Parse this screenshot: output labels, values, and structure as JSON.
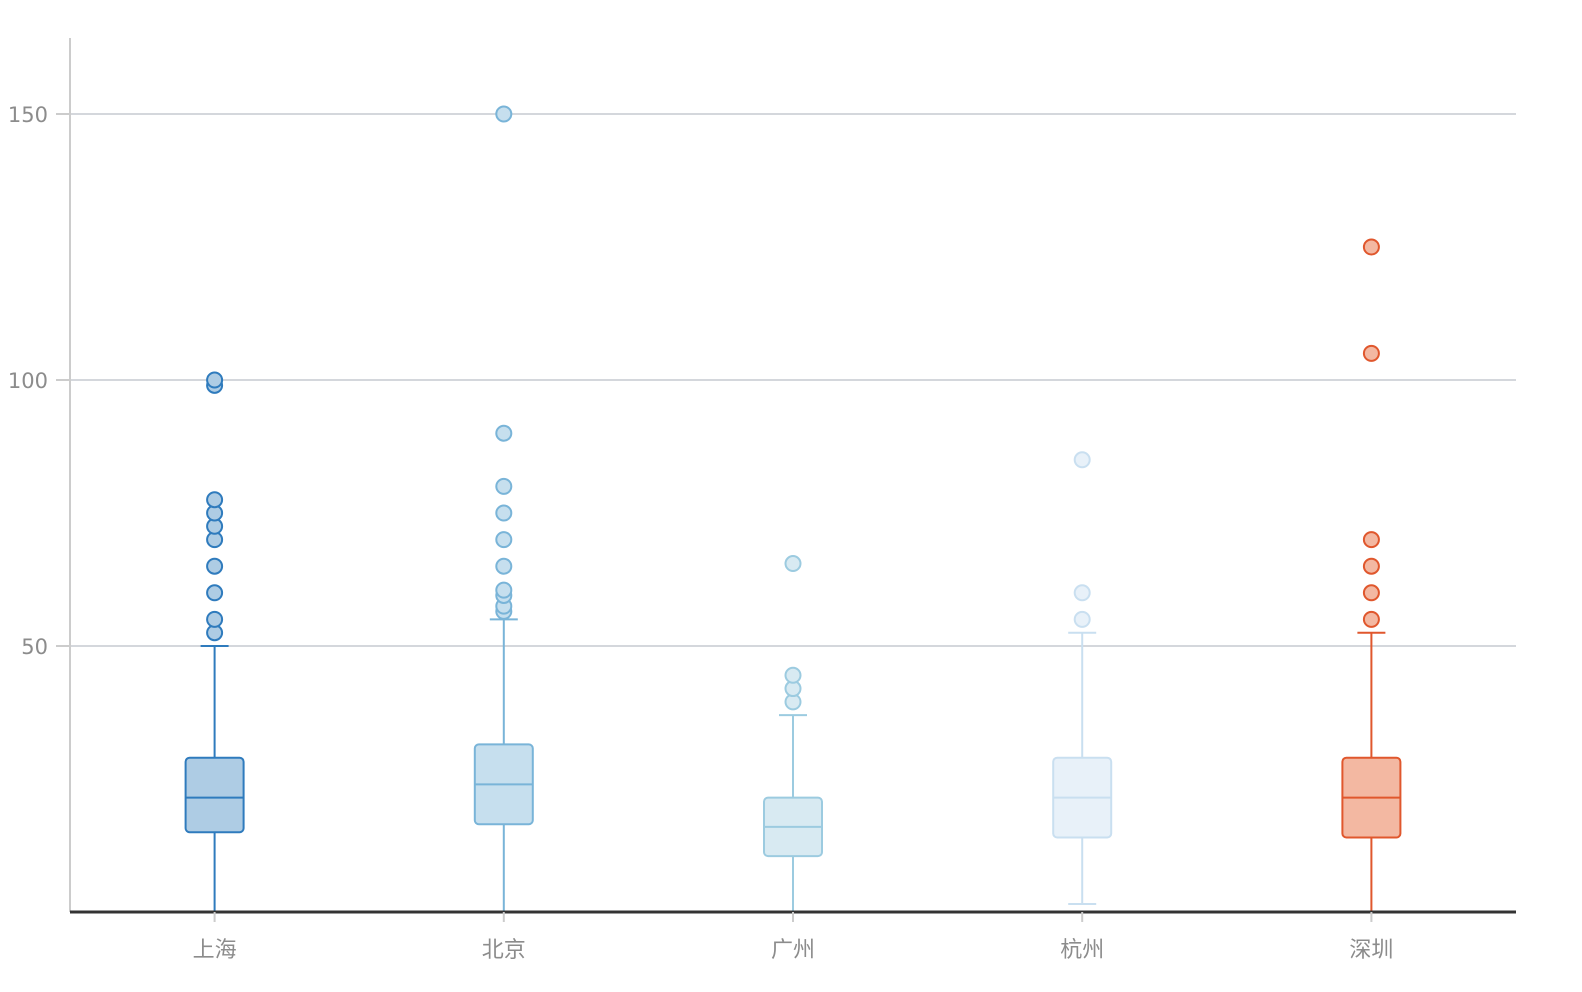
{
  "chart_data": {
    "type": "boxplot",
    "title": "",
    "xlabel": "",
    "ylabel": "",
    "ylim": [
      0,
      165
    ],
    "yticks": [
      50,
      100,
      150
    ],
    "grid": true,
    "categories": [
      "上海",
      "北京",
      "广州",
      "杭州",
      "深圳"
    ],
    "boxes": [
      {
        "category": "上海",
        "min": 0,
        "q1": 15,
        "median": 21.5,
        "q3": 29,
        "max": 50,
        "outliers": [
          52.5,
          55,
          60,
          65,
          70,
          72.5,
          75,
          77.5,
          99,
          100
        ],
        "stroke": "#2f7bbd",
        "fill": "#aecce4"
      },
      {
        "category": "北京",
        "min": 0,
        "q1": 16.5,
        "median": 24,
        "q3": 31.5,
        "max": 55,
        "outliers": [
          56.5,
          57.5,
          59.5,
          60.5,
          65,
          70,
          75,
          80,
          90,
          150
        ],
        "stroke": "#79b4d8",
        "fill": "#c6dfee"
      },
      {
        "category": "广州",
        "min": 0,
        "q1": 10.5,
        "median": 16,
        "q3": 21.5,
        "max": 37,
        "outliers": [
          39.5,
          42,
          44.5,
          65.5
        ],
        "stroke": "#9ccbe0",
        "fill": "#d8eaf2"
      },
      {
        "category": "杭州",
        "min": 1.5,
        "q1": 14,
        "median": 21.5,
        "q3": 29,
        "max": 52.5,
        "outliers": [
          55,
          60,
          85
        ],
        "stroke": "#c9dff0",
        "fill": "#e8f1f9"
      },
      {
        "category": "深圳",
        "min": 0,
        "q1": 14,
        "median": 21.5,
        "q3": 29,
        "max": 52.5,
        "outliers": [
          55,
          60,
          65,
          70,
          105,
          125
        ],
        "stroke": "#e0572d",
        "fill": "#f3b8a2"
      }
    ]
  }
}
